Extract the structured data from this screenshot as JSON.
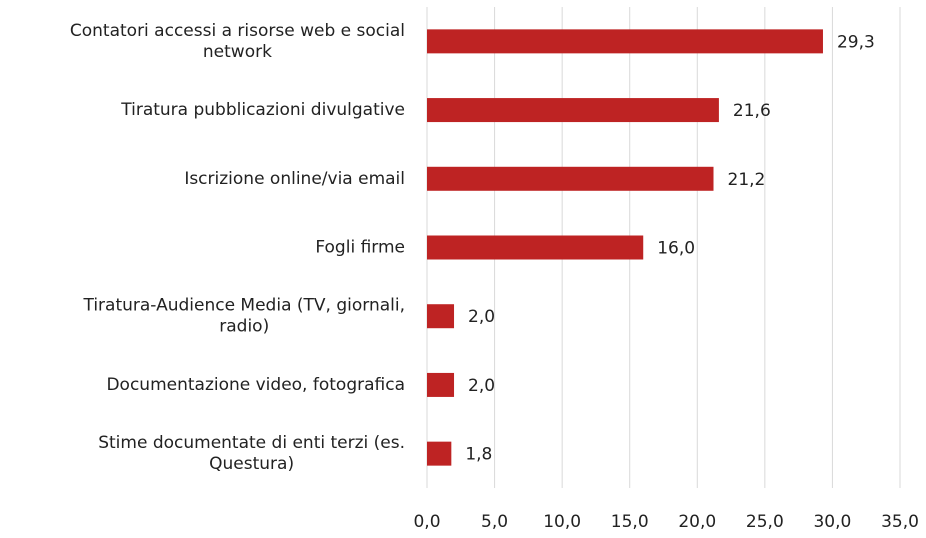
{
  "chart_data": {
    "type": "barh",
    "categories": [
      "Contatori accessi a risorse web e social network",
      "Tiratura pubblicazioni divulgative",
      "Iscrizione online/via email",
      "Fogli firme",
      "Tiratura-Audience Media (TV, giornali, radio)",
      "Documentazione video, fotografica",
      "Stime documentate di enti terzi (es. Questura)"
    ],
    "values": [
      29.3,
      21.6,
      21.2,
      16.0,
      2.0,
      2.0,
      1.8
    ],
    "value_labels": [
      "29,3",
      "21,6",
      "21,2",
      "16,0",
      "2,0",
      "2,0",
      "1,8"
    ],
    "color": "#be2323",
    "xlim": [
      0,
      35
    ],
    "xticks": [
      {
        "value": 0,
        "label": "0,0"
      },
      {
        "value": 5,
        "label": "5,0"
      },
      {
        "value": 10,
        "label": "10,0"
      },
      {
        "value": 15,
        "label": "15,0"
      },
      {
        "value": 20,
        "label": "20,0"
      },
      {
        "value": 25,
        "label": "25,0"
      },
      {
        "value": 30,
        "label": "30,0"
      },
      {
        "value": 35,
        "label": "35,0"
      }
    ],
    "grid": true
  }
}
